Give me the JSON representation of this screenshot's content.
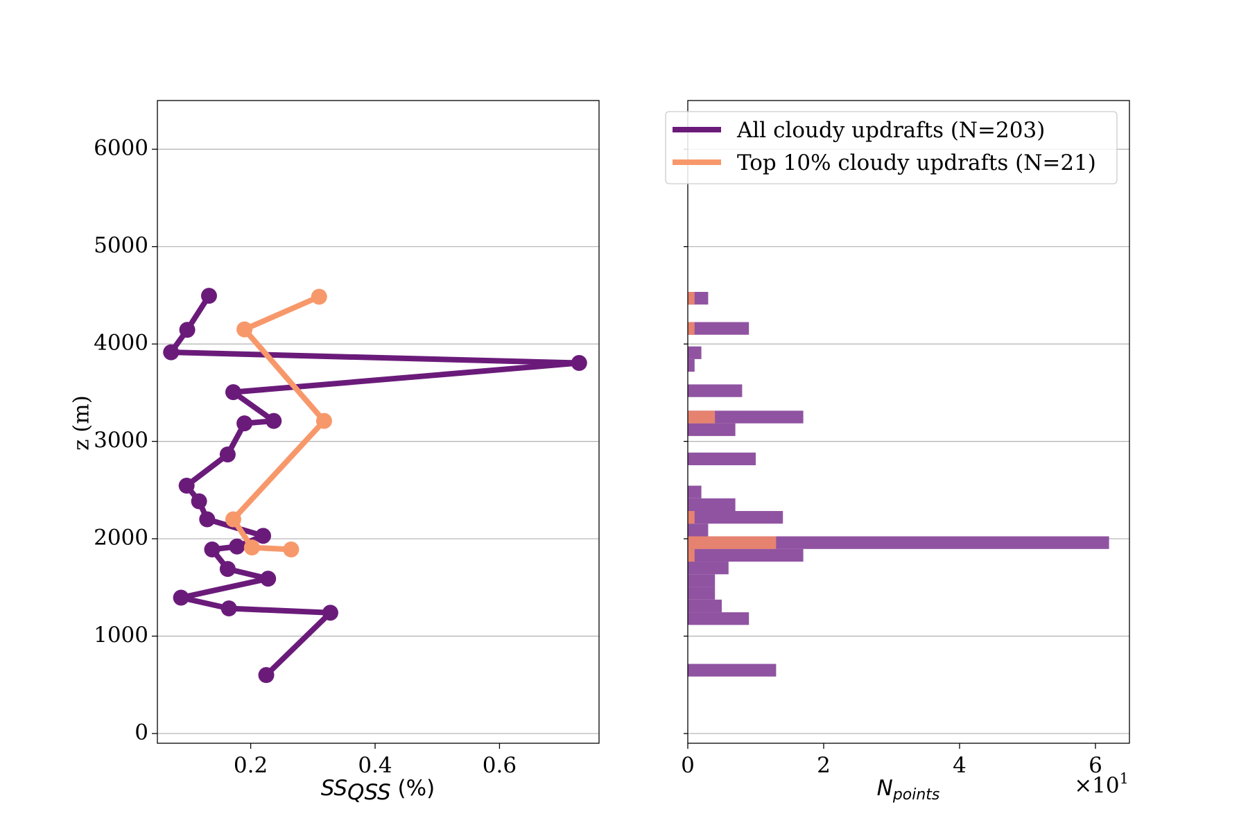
{
  "chart_data": [
    {
      "type": "line",
      "title": "",
      "xlabel_main": "SS",
      "xlabel_sub": "QSS",
      "xlabel_suffix": " (%)",
      "ylabel": "z (m)",
      "xlim": [
        0.05,
        0.76
      ],
      "ylim": [
        -100,
        6500
      ],
      "xticks": [
        0.2,
        0.4,
        0.6
      ],
      "xtick_labels": [
        "0.2",
        "0.4",
        "0.6"
      ],
      "yticks": [
        0,
        1000,
        2000,
        3000,
        4000,
        5000,
        6000
      ],
      "ytick_labels": [
        "0",
        "1000",
        "2000",
        "3000",
        "4000",
        "5000",
        "6000"
      ],
      "grid": "horizontal",
      "series": [
        {
          "name": "All cloudy updrafts (N=203)",
          "color": "#6a1b7a",
          "points": [
            [
              0.225,
              600
            ],
            [
              0.328,
              1240
            ],
            [
              0.165,
              1285
            ],
            [
              0.088,
              1395
            ],
            [
              0.228,
              1590
            ],
            [
              0.163,
              1690
            ],
            [
              0.138,
              1890
            ],
            [
              0.178,
              1920
            ],
            [
              0.22,
              2030
            ],
            [
              0.13,
              2200
            ],
            [
              0.117,
              2385
            ],
            [
              0.097,
              2545
            ],
            [
              0.163,
              2865
            ],
            [
              0.19,
              3185
            ],
            [
              0.237,
              3210
            ],
            [
              0.172,
              3505
            ],
            [
              0.728,
              3805
            ],
            [
              0.072,
              3915
            ],
            [
              0.098,
              4145
            ],
            [
              0.133,
              4495
            ]
          ]
        },
        {
          "name": "Top 10% cloudy updrafts (N=21)",
          "color": "#f7986b",
          "points": [
            [
              0.265,
              1890
            ],
            [
              0.202,
              1910
            ],
            [
              0.172,
              2200
            ],
            [
              0.318,
              3210
            ],
            [
              0.19,
              4150
            ],
            [
              0.31,
              4485
            ]
          ]
        }
      ]
    },
    {
      "type": "bar",
      "orientation": "horizontal",
      "title": "",
      "xlabel_main": "N",
      "xlabel_sub": "points",
      "xlim": [
        0,
        65
      ],
      "ylim": [
        -100,
        6500
      ],
      "xticks": [
        0,
        20,
        40,
        60
      ],
      "xtick_labels": [
        "0",
        "2",
        "4",
        "6"
      ],
      "offset_label_base": "×10",
      "offset_label_exp": "1",
      "grid": "horizontal",
      "legend": "top-right",
      "bin_height": 130,
      "series": [
        {
          "name": "All cloudy updrafts (N=203)",
          "color": "#8a4a9c",
          "bars": [
            {
              "y": 650,
              "value": 13
            },
            {
              "y": 1180,
              "value": 9
            },
            {
              "y": 1310,
              "value": 5
            },
            {
              "y": 1440,
              "value": 4
            },
            {
              "y": 1570,
              "value": 4
            },
            {
              "y": 1700,
              "value": 6
            },
            {
              "y": 1830,
              "value": 17
            },
            {
              "y": 1960,
              "value": 62
            },
            {
              "y": 2090,
              "value": 3
            },
            {
              "y": 2220,
              "value": 14
            },
            {
              "y": 2350,
              "value": 7
            },
            {
              "y": 2480,
              "value": 2
            },
            {
              "y": 2820,
              "value": 10
            },
            {
              "y": 3120,
              "value": 7
            },
            {
              "y": 3250,
              "value": 17
            },
            {
              "y": 3520,
              "value": 8
            },
            {
              "y": 3780,
              "value": 1
            },
            {
              "y": 3910,
              "value": 2
            },
            {
              "y": 4160,
              "value": 9
            },
            {
              "y": 4470,
              "value": 3
            }
          ]
        },
        {
          "name": "Top 10% cloudy updrafts (N=21)",
          "color": "#f0876a",
          "bars": [
            {
              "y": 1830,
              "value": 1
            },
            {
              "y": 1960,
              "value": 13
            },
            {
              "y": 2220,
              "value": 1
            },
            {
              "y": 3250,
              "value": 4
            },
            {
              "y": 4160,
              "value": 1
            },
            {
              "y": 4470,
              "value": 1
            }
          ]
        }
      ]
    }
  ]
}
